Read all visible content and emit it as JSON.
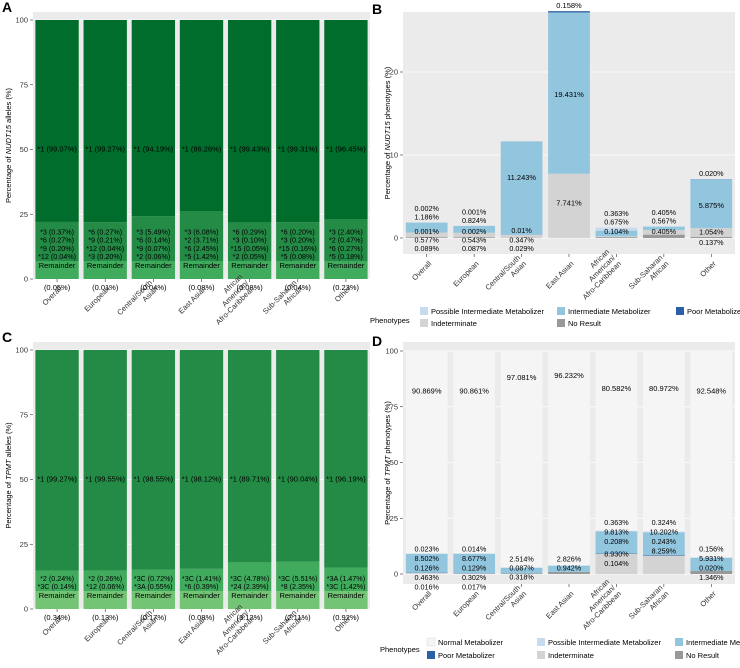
{
  "colors": {
    "panel_bg": "#ebebeb",
    "nudt15_major": "#006d2c",
    "nudt15_minor": "#238b45",
    "nudt15_rem": "#41ab5d",
    "tpmt_major": "#238b45",
    "tpmt_minor": "#41ab5d",
    "tpmt_rem": "#74c476",
    "normal_metabolizer": "#f5f5f5",
    "possible_intermediate": "#c6dbef",
    "intermediate": "#92c5de",
    "poor": "#2c5fa6",
    "indeterminate": "#d3d3d3",
    "no_result": "#999999"
  },
  "chart_data": [
    {
      "panel": "A",
      "type": "bar",
      "ylabel_prefix": "Percentage of ",
      "ylabel_gene": "NUDT15",
      "ylabel_suffix": " alleles (%)",
      "ylim": [
        0,
        100
      ],
      "yticks": [
        "0",
        "25",
        "50",
        "75",
        "100"
      ],
      "categories": [
        "Overall",
        "European",
        "Central/South Asian",
        "East Asian",
        "African American/Afro-Caribbean",
        "Sub-Saharan African",
        "Other"
      ],
      "category_tick_labels": [
        [
          "Overall"
        ],
        [
          "European"
        ],
        [
          "Central/South",
          "Asian"
        ],
        [
          "East Asian"
        ],
        [
          "African",
          "American/",
          "Afro-Caribbean"
        ],
        [
          "Sub-Saharan",
          "African"
        ],
        [
          "Other"
        ]
      ],
      "remainder_values": [
        0.05,
        0.01,
        0.04,
        0.08,
        0.08,
        0.04,
        0.23
      ],
      "remainder_labels": [
        [
          "Remainder",
          "(0.05%)"
        ],
        [
          "Remainder",
          "(0.01%)"
        ],
        [
          "Remainder",
          "(0.04%)"
        ],
        [
          "Remainder",
          "(0.08%)"
        ],
        [
          "Remainder",
          "(0.08%)"
        ],
        [
          "Remainder",
          "(0.04%)"
        ],
        [
          "Remainder",
          "(0.23%)"
        ]
      ],
      "minor_alleles": [
        [
          {
            "label": "*3 (0.37%)",
            "value": 0.37
          },
          {
            "label": "*6 (0.27%)",
            "value": 0.27
          },
          {
            "label": "*9 (0.20%)",
            "value": 0.2
          },
          {
            "label": "*12 (0.04%)",
            "value": 0.04
          }
        ],
        [
          {
            "label": "*6 (0.27%)",
            "value": 0.27
          },
          {
            "label": "*9 (0.21%)",
            "value": 0.21
          },
          {
            "label": "*12 (0.04%)",
            "value": 0.04
          },
          {
            "label": "*3 (0.20%)",
            "value": 0.2
          }
        ],
        [
          {
            "label": "*3 (5.49%)",
            "value": 5.49
          },
          {
            "label": "*6 (0.14%)",
            "value": 0.14
          },
          {
            "label": "*9 (0.07%)",
            "value": 0.07
          },
          {
            "label": "*2 (0.06%)",
            "value": 0.06
          }
        ],
        [
          {
            "label": "*3 (6.08%)",
            "value": 6.08
          },
          {
            "label": "*2 (3.71%)",
            "value": 3.71
          },
          {
            "label": "*6 (2.45%)",
            "value": 2.45
          },
          {
            "label": "*5 (1.42%)",
            "value": 1.42
          }
        ],
        [
          {
            "label": "*6 (0.29%)",
            "value": 0.29
          },
          {
            "label": "*3 (0.10%)",
            "value": 0.1
          },
          {
            "label": "*15 (0.05%)",
            "value": 0.05
          },
          {
            "label": "*2 (0.05%)",
            "value": 0.05
          }
        ],
        [
          {
            "label": "*6 (0.20%)",
            "value": 0.2
          },
          {
            "label": "*3 (0.20%)",
            "value": 0.2
          },
          {
            "label": "*15 (0.16%)",
            "value": 0.16
          },
          {
            "label": "*5 (0.08%)",
            "value": 0.08
          }
        ],
        [
          {
            "label": "*3 (2.40%)",
            "value": 2.4
          },
          {
            "label": "*2 (0.47%)",
            "value": 0.47
          },
          {
            "label": "*6 (0.27%)",
            "value": 0.27
          },
          {
            "label": "*5 (0.18%)",
            "value": 0.18
          }
        ]
      ],
      "major_allele": [
        {
          "label": "*1 (99.07%)",
          "value": 99.07
        },
        {
          "label": "*1 (99.27%)",
          "value": 99.27
        },
        {
          "label": "*1 (94.19%)",
          "value": 94.19
        },
        {
          "label": "*1 (86.26%)",
          "value": 86.26
        },
        {
          "label": "*1 (99.43%)",
          "value": 99.43
        },
        {
          "label": "*1 (99.31%)",
          "value": 99.31
        },
        {
          "label": "*1 (96.45%)",
          "value": 96.45
        }
      ]
    },
    {
      "panel": "B",
      "type": "bar",
      "ylabel_prefix": "Percentage of ",
      "ylabel_gene": "NUDT15",
      "ylabel_suffix": " phenotypes (%)",
      "ylim": [
        -1,
        28
      ],
      "yticks": [
        "0",
        "10",
        "20"
      ],
      "categories": [
        "Overall",
        "European",
        "Central/South Asian",
        "East Asian",
        "African American/Afro-Caribbean",
        "Sub-Saharan African",
        "Other"
      ],
      "category_tick_labels": [
        [
          "Overall"
        ],
        [
          "European"
        ],
        [
          "Central/South",
          "Asian"
        ],
        [
          "East Asian"
        ],
        [
          "African",
          "American/",
          "Afro-Caribbean"
        ],
        [
          "Sub-Saharan",
          "African"
        ],
        [
          "Other"
        ]
      ],
      "series": [
        {
          "name": "No Result",
          "values": [
            0.089,
            0.087,
            0.029,
            0,
            0.104,
            0.405,
            0.137
          ]
        },
        {
          "name": "Indeterminate",
          "values": [
            0.577,
            0.543,
            0.347,
            7.741,
            0.104,
            0.567,
            1.054
          ]
        },
        {
          "name": "Intermediate Metabolizer",
          "values": [
            1.186,
            0.824,
            11.243,
            19.431,
            0.675,
            0.405,
            5.875
          ]
        },
        {
          "name": "Possible Intermediate Metabolizer",
          "values": [
            0.001,
            0.002,
            0,
            0,
            0.363,
            0,
            0
          ]
        },
        {
          "name": "Poor Metabolizer",
          "values": [
            0.002,
            0.001,
            0.01,
            0.158,
            0,
            0,
            0.02
          ]
        }
      ],
      "data_labels": [
        [
          [
            "0.002%",
            "1.186%"
          ],
          [
            "0.001%",
            "0.577%",
            "0.089%"
          ]
        ],
        [
          [
            "0.001%",
            "0.824%"
          ],
          [
            "0.002%",
            "0.543%",
            "0.087%"
          ]
        ],
        [
          [
            "11.243%"
          ],
          [
            "0.01%",
            "0.347%",
            "0.029%"
          ]
        ],
        [
          [
            "0.158%",
            "19.431%"
          ],
          [
            "7.741%"
          ]
        ],
        [
          [
            "0.363%",
            "0.675%"
          ],
          [
            "0.104%"
          ]
        ],
        [
          [
            "0.405%",
            "0.567%"
          ],
          [
            "0.405%"
          ]
        ],
        [
          [
            "0.020%",
            "5.875%"
          ],
          [
            "1.054%",
            "0.137%"
          ]
        ]
      ],
      "legend": {
        "title": "Phenotypes",
        "items": [
          {
            "name": "Possible Intermediate Metabolizer",
            "color_key": "possible_intermediate"
          },
          {
            "name": "Intermediate Metabolizer",
            "color_key": "intermediate"
          },
          {
            "name": "Poor Metabolizer",
            "color_key": "poor"
          },
          {
            "name": "Indeterminate",
            "color_key": "indeterminate"
          },
          {
            "name": "No Result",
            "color_key": "no_result"
          }
        ]
      }
    },
    {
      "panel": "C",
      "type": "bar",
      "ylabel_prefix": "Percentage of ",
      "ylabel_gene": "TPMT",
      "ylabel_suffix": " alleles (%)",
      "ylim": [
        0,
        100
      ],
      "yticks": [
        "0",
        "25",
        "50",
        "75",
        "100"
      ],
      "categories": [
        "Overall",
        "European",
        "Central/South Asian",
        "East Asian",
        "African American/Afro-Caribbean",
        "Sub-Saharan African",
        "Other"
      ],
      "category_tick_labels": [
        [
          "Overall"
        ],
        [
          "European"
        ],
        [
          "Central/South",
          "Asian"
        ],
        [
          "East Asian"
        ],
        [
          "African",
          "American/",
          "Afro-Caribbean"
        ],
        [
          "Sub-Saharan",
          "African"
        ],
        [
          "Other"
        ]
      ],
      "remainder_values": [
        0.34,
        0.13,
        0.17,
        0.08,
        3.12,
        2.11,
        0.92
      ],
      "remainder_labels": [
        [
          "Remainder",
          "(0.34%)"
        ],
        [
          "Remainder",
          "(0.13%)"
        ],
        [
          "Remainder",
          "(0.17%)"
        ],
        [
          "Remainder",
          "(0.08%)"
        ],
        [
          "Remainder",
          "(3.12%)"
        ],
        [
          "Remainder",
          "(2.11%)"
        ],
        [
          "Remainder",
          "(0.92%)"
        ]
      ],
      "minor_alleles": [
        [
          {
            "label": "*2 (0.24%)",
            "value": 0.24
          },
          {
            "label": "*3C (0.14%)",
            "value": 0.14
          }
        ],
        [
          {
            "label": "*2 (0.26%)",
            "value": 0.26
          },
          {
            "label": "*12 (0.06%)",
            "value": 0.06
          }
        ],
        [
          {
            "label": "*3C (0.72%)",
            "value": 0.72
          },
          {
            "label": "*3A (0.55%)",
            "value": 0.55
          }
        ],
        [
          {
            "label": "*3C (1.41%)",
            "value": 1.41
          },
          {
            "label": "*6 (0.39%)",
            "value": 0.39
          }
        ],
        [
          {
            "label": "*3C (4.78%)",
            "value": 4.78
          },
          {
            "label": "*24 (2.39%)",
            "value": 2.39
          }
        ],
        [
          {
            "label": "*3C (5.51%)",
            "value": 5.51
          },
          {
            "label": "*8 (2.35%)",
            "value": 2.35
          }
        ],
        [
          {
            "label": "*3A (1.47%)",
            "value": 1.47
          },
          {
            "label": "*3C (1.42%)",
            "value": 1.42
          }
        ]
      ],
      "major_allele": [
        {
          "label": "*1 (99.27%)",
          "value": 99.27
        },
        {
          "label": "*1 (99.55%)",
          "value": 99.55
        },
        {
          "label": "*1 (98.55%)",
          "value": 98.55
        },
        {
          "label": "*1 (98.12%)",
          "value": 98.12
        },
        {
          "label": "*1 (89.71%)",
          "value": 89.71
        },
        {
          "label": "*1 (90.04%)",
          "value": 90.04
        },
        {
          "label": "*1 (96.19%)",
          "value": 96.19
        }
      ]
    },
    {
      "panel": "D",
      "type": "bar",
      "ylabel_prefix": "Percentage of ",
      "ylabel_gene": "TPMT",
      "ylabel_suffix": " phenotypes (%)",
      "ylim": [
        0,
        100
      ],
      "yticks": [
        "0",
        "25",
        "50",
        "75",
        "100"
      ],
      "categories": [
        "Overall",
        "European",
        "Central/South Asian",
        "East Asian",
        "African American/Afro-Caribbean",
        "Sub-Saharan African",
        "Other"
      ],
      "category_tick_labels": [
        [
          "Overall"
        ],
        [
          "European"
        ],
        [
          "Central/South",
          "Asian"
        ],
        [
          "East Asian"
        ],
        [
          "African",
          "American/",
          "Afro-Caribbean"
        ],
        [
          "Sub-Saharan",
          "African"
        ],
        [
          "Other"
        ]
      ],
      "normal_labels": [
        "90.869%",
        "90.861%",
        "97.081%",
        "96.232%",
        "80.582%",
        "80.972%",
        "92.548%"
      ],
      "series": [
        {
          "name": "No Result",
          "values": [
            0.016,
            0.017,
            0.318,
            0.942,
            0.104,
            0,
            1.346
          ]
        },
        {
          "name": "Indeterminate",
          "values": [
            0.463,
            0.302,
            0,
            0,
            8.93,
            8.259,
            0.02
          ]
        },
        {
          "name": "Poor Metabolizer",
          "values": [
            0.126,
            0.129,
            0,
            0,
            0.208,
            0.243,
            0
          ]
        },
        {
          "name": "Intermediate Metabolizer",
          "values": [
            8.502,
            8.677,
            2.514,
            2.826,
            9.813,
            10.202,
            5.931
          ]
        },
        {
          "name": "Possible Intermediate Metabolizer",
          "values": [
            0.023,
            0.014,
            0.087,
            0,
            0.363,
            0.324,
            0.156
          ]
        },
        {
          "name": "Normal Metabolizer",
          "values": [
            90.869,
            90.861,
            97.081,
            96.232,
            80.582,
            80.972,
            92.548
          ]
        }
      ],
      "data_labels": [
        [
          "0.023%",
          "8.502%",
          "0.126%",
          "0.463%",
          "0.016%"
        ],
        [
          "0.014%",
          "8.677%",
          "0.129%",
          "0.302%",
          "0.017%"
        ],
        [
          "2.514%",
          "0.087%",
          "0.318%"
        ],
        [
          "2.826%",
          "0.942%"
        ],
        [
          "0.363%",
          "9.813%",
          "0.208%",
          "8.930%",
          "0.104%"
        ],
        [
          "0.324%",
          "10.202%",
          "0.243%",
          "8.259%"
        ],
        [
          "0.156%",
          "5.931%",
          "0.020%",
          "1.346%"
        ]
      ],
      "legend": {
        "title": "Phenotypes",
        "row1": [
          {
            "name": "Normal Metabolizer",
            "color_key": "normal_metabolizer"
          },
          {
            "name": "Possible Intermediate Metabolizer",
            "color_key": "possible_intermediate"
          },
          {
            "name": "Intermediate Metabolizer",
            "color_key": "intermediate"
          }
        ],
        "row2": [
          {
            "name": "Poor Metabolizer",
            "color_key": "poor"
          },
          {
            "name": "Indeterminate",
            "color_key": "indeterminate"
          },
          {
            "name": "No Result",
            "color_key": "no_result"
          }
        ]
      }
    }
  ]
}
